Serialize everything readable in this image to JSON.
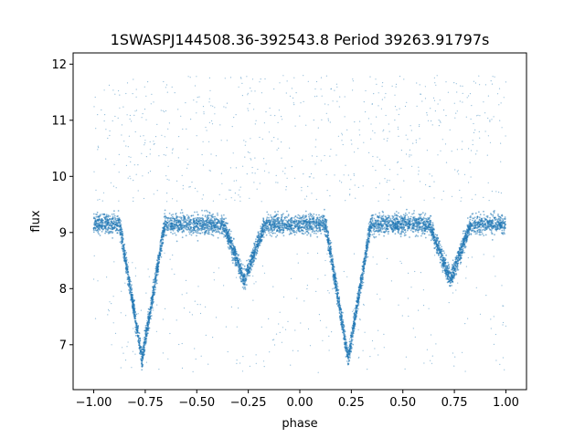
{
  "chart_data": {
    "type": "scatter",
    "title": "1SWASPJ144508.36-392543.8 Period 39263.91797s",
    "xlabel": "phase",
    "ylabel": "flux",
    "xlim": [
      -1.1,
      1.1
    ],
    "ylim": [
      6.2,
      12.2
    ],
    "xticks": [
      -1.0,
      -0.75,
      -0.5,
      -0.25,
      0.0,
      0.25,
      0.5,
      0.75,
      1.0
    ],
    "xtick_labels": [
      "−1.00",
      "−0.75",
      "−0.50",
      "−0.25",
      "0.00",
      "0.25",
      "0.50",
      "0.75",
      "1.00"
    ],
    "yticks": [
      7,
      8,
      9,
      10,
      11,
      12
    ],
    "ytick_labels": [
      "7",
      "8",
      "9",
      "10",
      "11",
      "12"
    ],
    "grid": false,
    "marker_color": "#1f77b4",
    "series": [
      {
        "phase_range": [
          -1.0,
          1.0
        ],
        "baseline_flux": 9.15,
        "baseline_scatter": 0.22,
        "outlier_flux_range": [
          6.5,
          11.8
        ],
        "eclipses": [
          {
            "kind": "primary",
            "phase": -0.765,
            "min_flux": 6.75,
            "half_width": 0.11
          },
          {
            "kind": "secondary",
            "phase": -0.27,
            "min_flux": 8.15,
            "half_width": 0.1
          },
          {
            "kind": "primary",
            "phase": 0.235,
            "min_flux": 6.75,
            "half_width": 0.11
          },
          {
            "kind": "secondary",
            "phase": 0.73,
            "min_flux": 8.15,
            "half_width": 0.1
          }
        ]
      }
    ]
  }
}
